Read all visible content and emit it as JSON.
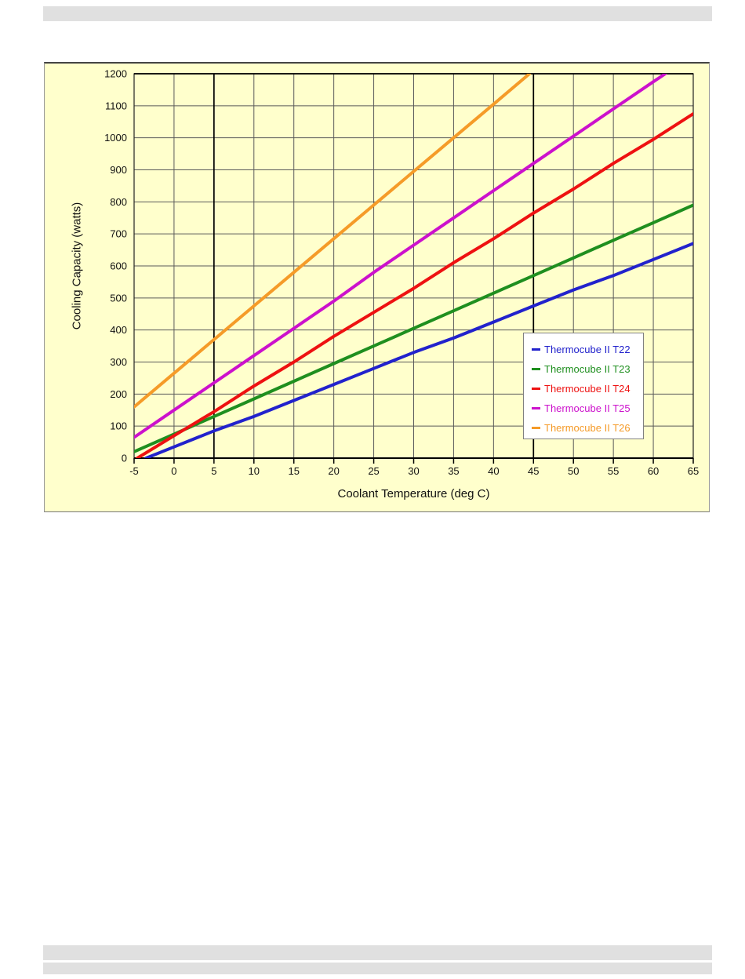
{
  "decor": {
    "top_bar_color": "#e0e0e0",
    "bottom_bar_color": "#e0e0e0",
    "page_background": "#ffffff"
  },
  "chart_style": {
    "plot_background": "#ffffcc",
    "grid_color": "#5a5a5a",
    "frame_color": "#222222",
    "dark_grid_color": "#000000",
    "legend_border_color": "#808080",
    "legend_background": "#ffffff"
  },
  "chart_data": {
    "type": "line",
    "title": "",
    "xlabel": "Coolant Temperature (deg C)",
    "ylabel": "Cooling Capacity (watts)",
    "xlim": [
      -5,
      65
    ],
    "ylim": [
      0,
      1200
    ],
    "x_ticks": [
      -5,
      0,
      5,
      10,
      15,
      20,
      25,
      30,
      35,
      40,
      45,
      50,
      55,
      60,
      65
    ],
    "y_ticks": [
      0,
      100,
      200,
      300,
      400,
      500,
      600,
      700,
      800,
      900,
      1000,
      1100,
      1200
    ],
    "grid": true,
    "dark_vertical_gridlines_x": [
      5,
      45
    ],
    "legend_position": "inside lower-right",
    "series": [
      {
        "name": "Thermocube II T22",
        "color": "#2222cc",
        "points": [
          [
            -3.5,
            0
          ],
          [
            0,
            35
          ],
          [
            5,
            85
          ],
          [
            10,
            130
          ],
          [
            15,
            180
          ],
          [
            20,
            230
          ],
          [
            25,
            280
          ],
          [
            30,
            330
          ],
          [
            35,
            375
          ],
          [
            40,
            425
          ],
          [
            45,
            475
          ],
          [
            50,
            525
          ],
          [
            55,
            570
          ],
          [
            60,
            620
          ],
          [
            65,
            670
          ]
        ]
      },
      {
        "name": "Thermocube II T23",
        "color": "#1f8f1f",
        "points": [
          [
            -5,
            20
          ],
          [
            0,
            75
          ],
          [
            5,
            130
          ],
          [
            10,
            185
          ],
          [
            15,
            240
          ],
          [
            20,
            295
          ],
          [
            25,
            350
          ],
          [
            30,
            405
          ],
          [
            35,
            460
          ],
          [
            40,
            515
          ],
          [
            45,
            570
          ],
          [
            50,
            625
          ],
          [
            55,
            680
          ],
          [
            60,
            735
          ],
          [
            65,
            790
          ]
        ]
      },
      {
        "name": "Thermocube II T24",
        "color": "#ee1111",
        "points": [
          [
            -4.6,
            0
          ],
          [
            0,
            70
          ],
          [
            5,
            145
          ],
          [
            10,
            225
          ],
          [
            15,
            300
          ],
          [
            20,
            380
          ],
          [
            25,
            455
          ],
          [
            30,
            530
          ],
          [
            35,
            610
          ],
          [
            40,
            685
          ],
          [
            45,
            765
          ],
          [
            50,
            840
          ],
          [
            55,
            920
          ],
          [
            60,
            995
          ],
          [
            65,
            1075
          ]
        ]
      },
      {
        "name": "Thermocube II T25",
        "color": "#cc11cc",
        "points": [
          [
            -5,
            65
          ],
          [
            0,
            150
          ],
          [
            5,
            235
          ],
          [
            10,
            320
          ],
          [
            15,
            405
          ],
          [
            20,
            490
          ],
          [
            25,
            580
          ],
          [
            30,
            665
          ],
          [
            35,
            750
          ],
          [
            40,
            835
          ],
          [
            45,
            920
          ],
          [
            50,
            1005
          ],
          [
            55,
            1090
          ],
          [
            60,
            1175
          ],
          [
            61.5,
            1200
          ]
        ]
      },
      {
        "name": "Thermocube II T26",
        "color": "#f59b28",
        "points": [
          [
            -5,
            160
          ],
          [
            0,
            265
          ],
          [
            5,
            370
          ],
          [
            10,
            475
          ],
          [
            15,
            580
          ],
          [
            20,
            685
          ],
          [
            25,
            790
          ],
          [
            30,
            895
          ],
          [
            35,
            1000
          ],
          [
            40,
            1105
          ],
          [
            44.5,
            1200
          ]
        ]
      }
    ]
  }
}
